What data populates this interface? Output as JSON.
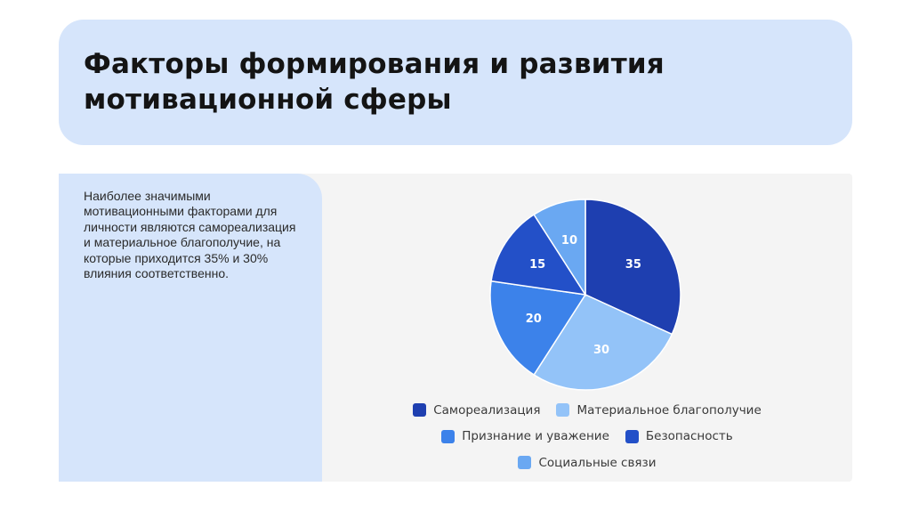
{
  "slide": {
    "title": "Факторы формирования и развития мотивационной сферы",
    "body": "Наиболее значимыми мотивационными факторами для личности являются самореализация и материальное благополучие, на которые приходится 35% и 30% влияния соответственно."
  },
  "chart_data": {
    "type": "pie",
    "title": "",
    "start_angle_deg": 0,
    "direction": "clockwise",
    "legend_position": "bottom",
    "slices": [
      {
        "label": "Самореализация",
        "value": 35,
        "color": "#1e3fb0",
        "label_color": "#ffffff"
      },
      {
        "label": "Материальное благополучие",
        "value": 30,
        "color": "#93c3f8",
        "label_color": "#ffffff"
      },
      {
        "label": "Признание и уважение",
        "value": 20,
        "color": "#3c82ea",
        "label_color": "#ffffff"
      },
      {
        "label": "Безопасность",
        "value": 15,
        "color": "#2350c8",
        "label_color": "#ffffff"
      },
      {
        "label": "Социальные связи",
        "value": 10,
        "color": "#6aa8f2",
        "label_color": "#ffffff"
      }
    ]
  }
}
